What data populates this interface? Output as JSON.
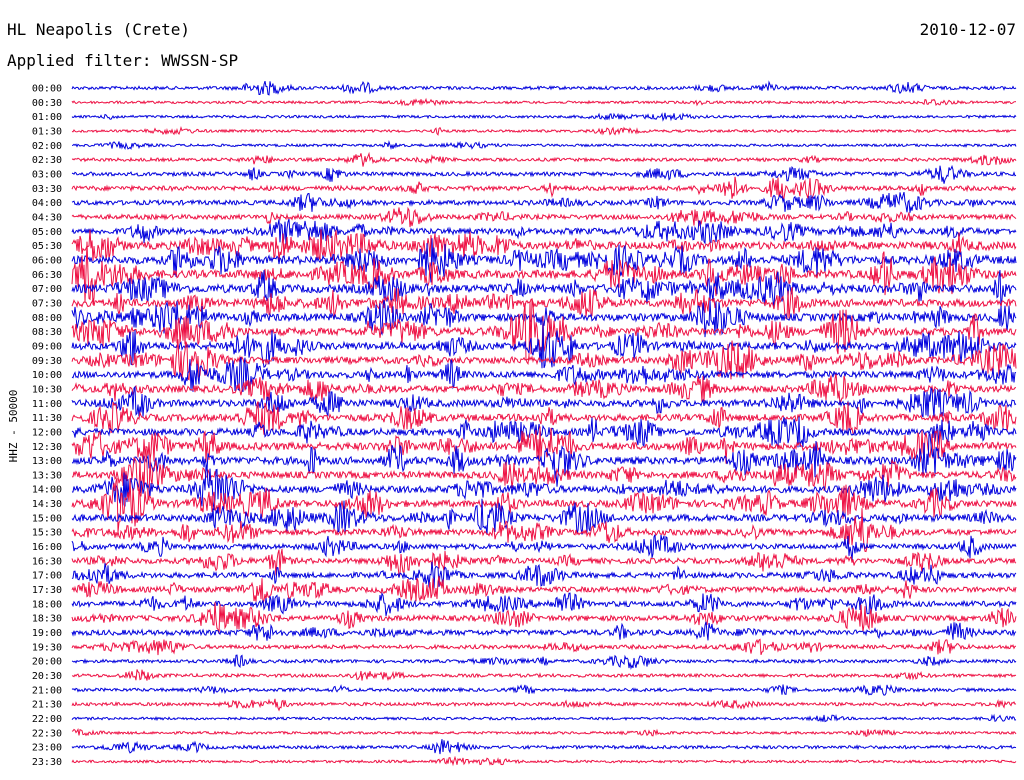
{
  "header": {
    "station": "HL Neapolis (Crete)",
    "date": "2010-12-07",
    "filter": "Applied filter: WWSSN-SP"
  },
  "chart_data": {
    "type": "line",
    "title": "HL Neapolis (Crete)",
    "subtitle": "Applied filter: WWSSN-SP",
    "date": "2010-12-07",
    "ylabel": "HHZ - 50000",
    "xlabel": "",
    "grid": false,
    "colors": {
      "even_hour": "#0000dd",
      "half_hour": "#ee1144"
    },
    "rows": [
      "00:00",
      "00:30",
      "01:00",
      "01:30",
      "02:00",
      "02:30",
      "03:00",
      "03:30",
      "04:00",
      "04:30",
      "05:00",
      "05:30",
      "06:00",
      "06:30",
      "07:00",
      "07:30",
      "08:00",
      "08:30",
      "09:00",
      "09:30",
      "10:00",
      "10:30",
      "11:00",
      "11:30",
      "12:00",
      "12:30",
      "13:00",
      "13:30",
      "14:00",
      "14:30",
      "15:00",
      "15:30",
      "16:00",
      "16:30",
      "17:00",
      "17:30",
      "18:00",
      "18:30",
      "19:00",
      "19:30",
      "20:00",
      "20:30",
      "21:00",
      "21:30",
      "22:00",
      "22:30",
      "23:00",
      "23:30"
    ],
    "activity_level": [
      2,
      1,
      1,
      1,
      1,
      2,
      3,
      4,
      4,
      4,
      6,
      8,
      9,
      9,
      9,
      8,
      8,
      8,
      8,
      7,
      7,
      7,
      7,
      7,
      7,
      8,
      8,
      7,
      7,
      7,
      7,
      6,
      5,
      5,
      5,
      5,
      5,
      5,
      5,
      3,
      2,
      2,
      2,
      2,
      1,
      1,
      2,
      1
    ]
  }
}
